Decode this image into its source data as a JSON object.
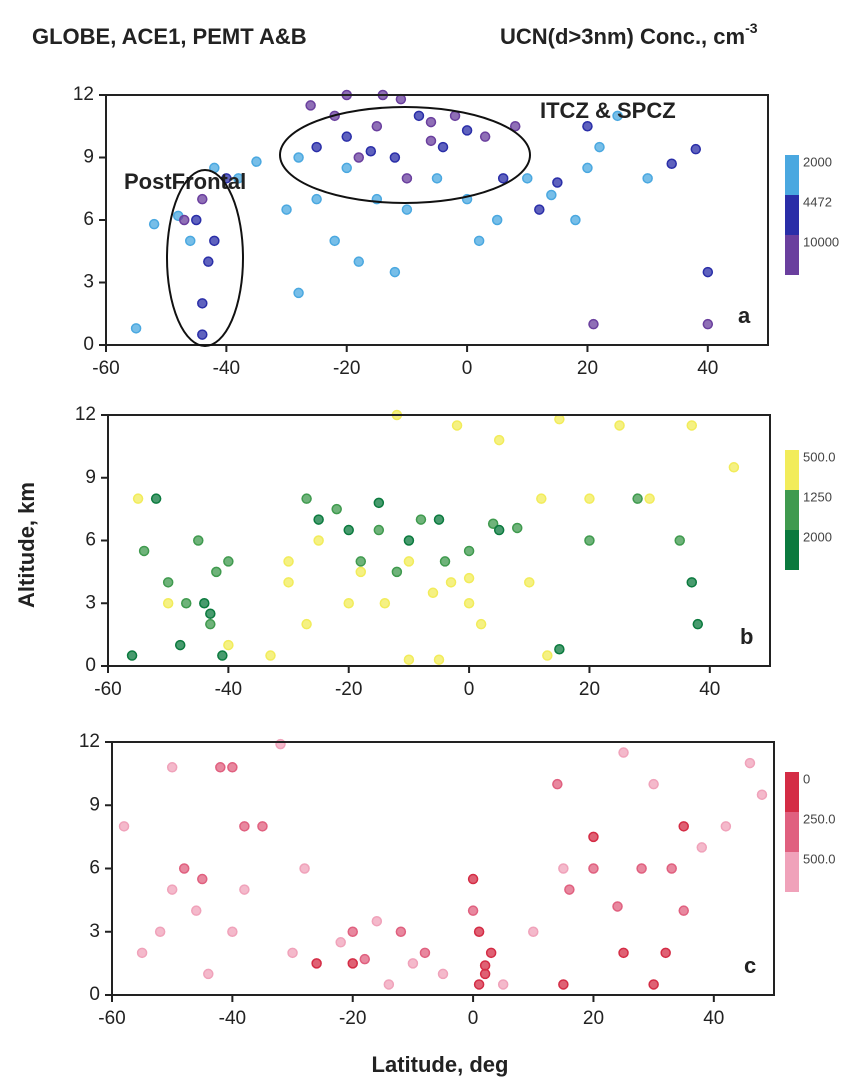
{
  "title_left": "GLOBE, ACE1, PEMT A&B",
  "title_right": "UCN(d>3nm) Conc., cm",
  "title_right_exponent": "-3",
  "y_label": "Altitude, km",
  "x_label": "Latitude, deg",
  "chart_data": [
    {
      "type": "scatter",
      "panel_label": "a",
      "xlim": [
        -60,
        50
      ],
      "ylim": [
        0,
        12
      ],
      "xticks": [
        -60,
        -40,
        -20,
        0,
        20,
        40
      ],
      "yticks": [
        0,
        3,
        6,
        9,
        12
      ],
      "annotations": [
        "PostFrontal",
        "ITCZ & SPCZ"
      ],
      "series": [
        {
          "name": "2000",
          "color": "#4aa8e0",
          "x": [
            -55,
            -52,
            -48,
            -46,
            -38,
            -30,
            -28,
            -25,
            -22,
            -20,
            -18,
            -15,
            -10,
            -5,
            0,
            5,
            10,
            18,
            20,
            25,
            30,
            -42,
            -35,
            -12,
            2,
            14,
            -28,
            22
          ],
          "y": [
            0.8,
            5.8,
            6.2,
            5,
            8,
            6.5,
            9,
            7,
            5,
            8.5,
            4,
            7,
            6.5,
            8,
            7,
            6,
            8,
            6,
            8.5,
            11,
            8,
            8.5,
            8.8,
            3.5,
            5,
            7.2,
            2.5,
            9.5
          ]
        },
        {
          "name": "4472",
          "color": "#2a2ea8",
          "x": [
            -44,
            -44,
            -43,
            -45,
            -42,
            -40,
            -25,
            -20,
            -16,
            -12,
            -8,
            -4,
            0,
            6,
            12,
            15,
            20,
            34,
            38,
            40
          ],
          "y": [
            0.5,
            2,
            4,
            6,
            5,
            8,
            9.5,
            10,
            9.3,
            9,
            11,
            9.5,
            10.3,
            8,
            6.5,
            7.8,
            10.5,
            8.7,
            9.4,
            3.5
          ]
        },
        {
          "name": "10000",
          "color": "#6a3f9e",
          "x": [
            -47,
            -44,
            -26,
            -22,
            -18,
            -15,
            -10,
            -6,
            -2,
            3,
            8,
            21,
            40,
            -20,
            -14,
            -11,
            -6
          ],
          "y": [
            6,
            7,
            11.5,
            11,
            9,
            10.5,
            8,
            9.8,
            11,
            10,
            10.5,
            1,
            1,
            12,
            12,
            11.8,
            10.7
          ]
        }
      ]
    },
    {
      "type": "scatter",
      "panel_label": "b",
      "xlim": [
        -60,
        50
      ],
      "ylim": [
        0,
        12
      ],
      "xticks": [
        -60,
        -40,
        -20,
        0,
        20,
        40
      ],
      "yticks": [
        0,
        3,
        6,
        9,
        12
      ],
      "series": [
        {
          "name": "500.0",
          "color": "#f2ec5a",
          "x": [
            -55,
            -50,
            -40,
            -33,
            -30,
            -27,
            -25,
            -20,
            -18,
            -14,
            -12,
            -10,
            -6,
            -3,
            0,
            2,
            5,
            10,
            13,
            20,
            25,
            30,
            37,
            44,
            -10,
            -5,
            0,
            12,
            -30,
            15,
            -2
          ],
          "y": [
            8,
            3,
            1,
            0.5,
            4,
            2,
            6,
            3,
            4.5,
            3,
            12,
            5,
            3.5,
            4,
            3,
            2,
            10.8,
            4,
            0.5,
            8,
            11.5,
            8,
            11.5,
            9.5,
            0.3,
            0.3,
            4.2,
            8,
            5,
            11.8,
            11.5
          ]
        },
        {
          "name": "1250",
          "color": "#3f9a4e",
          "x": [
            -54,
            -50,
            -47,
            -45,
            -43,
            -42,
            -40,
            -27,
            -22,
            -18,
            -15,
            -12,
            -8,
            -4,
            0,
            4,
            8,
            20,
            28,
            35
          ],
          "y": [
            5.5,
            4,
            3,
            6,
            2,
            4.5,
            5,
            8,
            7.5,
            5,
            6.5,
            4.5,
            7,
            5,
            5.5,
            6.8,
            6.6,
            6,
            8,
            6
          ]
        },
        {
          "name": "2000",
          "color": "#0b7a3e",
          "x": [
            -56,
            -52,
            -48,
            -44,
            -43,
            -41,
            -25,
            -20,
            -15,
            -10,
            -5,
            5,
            15,
            37,
            38
          ],
          "y": [
            0.5,
            8,
            1,
            3,
            2.5,
            0.5,
            7,
            6.5,
            7.8,
            6,
            7,
            6.5,
            0.8,
            4,
            2
          ]
        }
      ]
    },
    {
      "type": "scatter",
      "panel_label": "c",
      "xlim": [
        -60,
        50
      ],
      "ylim": [
        0,
        12
      ],
      "xticks": [
        -60,
        -40,
        -20,
        0,
        20,
        40
      ],
      "yticks": [
        0,
        3,
        6,
        9,
        12
      ],
      "series": [
        {
          "name": "0",
          "color": "#d42c45",
          "x": [
            0,
            1,
            2,
            3,
            -20,
            -26,
            15,
            20,
            25,
            30,
            32,
            35,
            1,
            2
          ],
          "y": [
            5.5,
            0.5,
            1,
            2,
            1.5,
            1.5,
            0.5,
            7.5,
            2,
            0.5,
            2,
            8,
            3,
            1.4
          ]
        },
        {
          "name": "250.0",
          "color": "#e0607f",
          "x": [
            -48,
            -45,
            -42,
            -40,
            -35,
            -38,
            -20,
            -18,
            -12,
            -8,
            0,
            14,
            16,
            20,
            24,
            28,
            33,
            35
          ],
          "y": [
            6,
            5.5,
            10.8,
            10.8,
            8,
            8,
            3,
            1.7,
            3,
            2,
            4,
            10,
            5,
            6,
            4.2,
            6,
            6,
            4
          ]
        },
        {
          "name": "500.0",
          "color": "#f0a2ba",
          "x": [
            -58,
            -55,
            -52,
            -50,
            -46,
            -44,
            -38,
            -32,
            -28,
            -22,
            -16,
            -14,
            -10,
            -5,
            5,
            10,
            15,
            25,
            30,
            38,
            42,
            46,
            48,
            -30,
            -40,
            -50
          ],
          "y": [
            8,
            2,
            3,
            10.8,
            4,
            1,
            5,
            11.9,
            6,
            2.5,
            3.5,
            0.5,
            1.5,
            1,
            0.5,
            3,
            6,
            11.5,
            10,
            7,
            8,
            11,
            9.5,
            2,
            3,
            5
          ]
        }
      ]
    }
  ]
}
